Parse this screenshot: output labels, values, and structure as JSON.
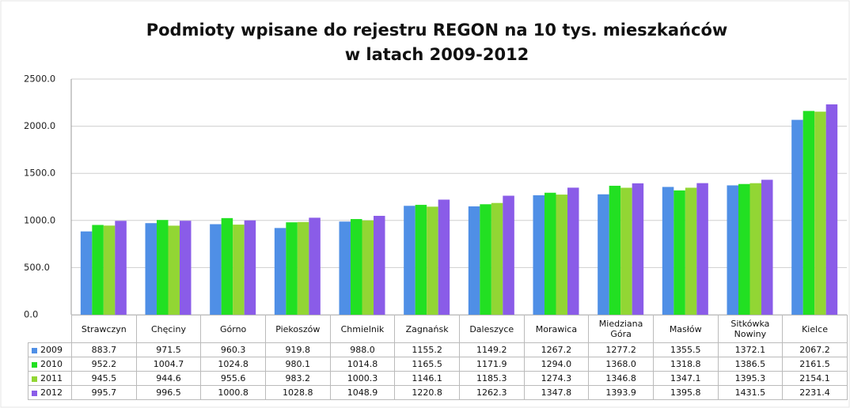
{
  "chart_data": {
    "type": "bar",
    "title": [
      "Podmioty wpisane do rejestru REGON na 10 tys. mieszkańców",
      "w latach 2009-2012"
    ],
    "categories": [
      "Strawczyn",
      "Chęciny",
      "Górno",
      "Piekoszów",
      "Chmielnik",
      "Zagnańsk",
      "Daleszyce",
      "Morawica",
      "Miedziana Góra",
      "Masłów",
      "Sitkówka Nowiny",
      "Kielce"
    ],
    "series": [
      {
        "name": "2009",
        "color": "#4f8fe6",
        "values": [
          883.7,
          971.5,
          960.3,
          919.8,
          988.0,
          1155.2,
          1149.2,
          1267.2,
          1277.2,
          1355.5,
          1372.1,
          2067.2
        ],
        "value_labels": [
          "883.7",
          "971.5",
          "960.3",
          "919.8",
          "988.0",
          "1155.2",
          "1149.2",
          "1267.2",
          "1277.2",
          "1355.5",
          "1372.1",
          "2067.2"
        ]
      },
      {
        "name": "2010",
        "color": "#22e022",
        "values": [
          952.2,
          1004.7,
          1024.8,
          980.1,
          1014.8,
          1165.5,
          1171.9,
          1294.0,
          1368.0,
          1318.8,
          1386.5,
          2161.5
        ],
        "value_labels": [
          "952.2",
          "1004.7",
          "1024.8",
          "980.1",
          "1014.8",
          "1165.5",
          "1171.9",
          "1294.0",
          "1368.0",
          "1318.8",
          "1386.5",
          "2161.5"
        ]
      },
      {
        "name": "2011",
        "color": "#92d634",
        "values": [
          945.5,
          944.6,
          955.6,
          983.2,
          1000.3,
          1146.1,
          1185.3,
          1274.3,
          1346.8,
          1347.1,
          1395.3,
          2154.1
        ],
        "value_labels": [
          "945.5",
          "944.6",
          "955.6",
          "983.2",
          "1000.3",
          "1146.1",
          "1185.3",
          "1274.3",
          "1346.8",
          "1347.1",
          "1395.3",
          "2154.1"
        ]
      },
      {
        "name": "2012",
        "color": "#8a5ce8",
        "values": [
          995.7,
          996.5,
          1000.8,
          1028.8,
          1048.9,
          1220.8,
          1262.3,
          1347.8,
          1393.9,
          1395.8,
          1431.5,
          2231.4
        ],
        "value_labels": [
          "995.7",
          "996.5",
          "1000.8",
          "1028.8",
          "1048.9",
          "1220.8",
          "1262.3",
          "1347.8",
          "1393.9",
          "1395.8",
          "1431.5",
          "2231.4"
        ]
      }
    ],
    "ylim": [
      0,
      2500
    ],
    "yticks": [
      {
        "value": 0,
        "label": "0.0"
      },
      {
        "value": 500,
        "label": "500.0"
      },
      {
        "value": 1000,
        "label": "1000.0"
      },
      {
        "value": 1500,
        "label": "1500.0"
      },
      {
        "value": 2000,
        "label": "2000.0"
      },
      {
        "value": 2500,
        "label": "2500.0"
      }
    ],
    "grid": true
  }
}
